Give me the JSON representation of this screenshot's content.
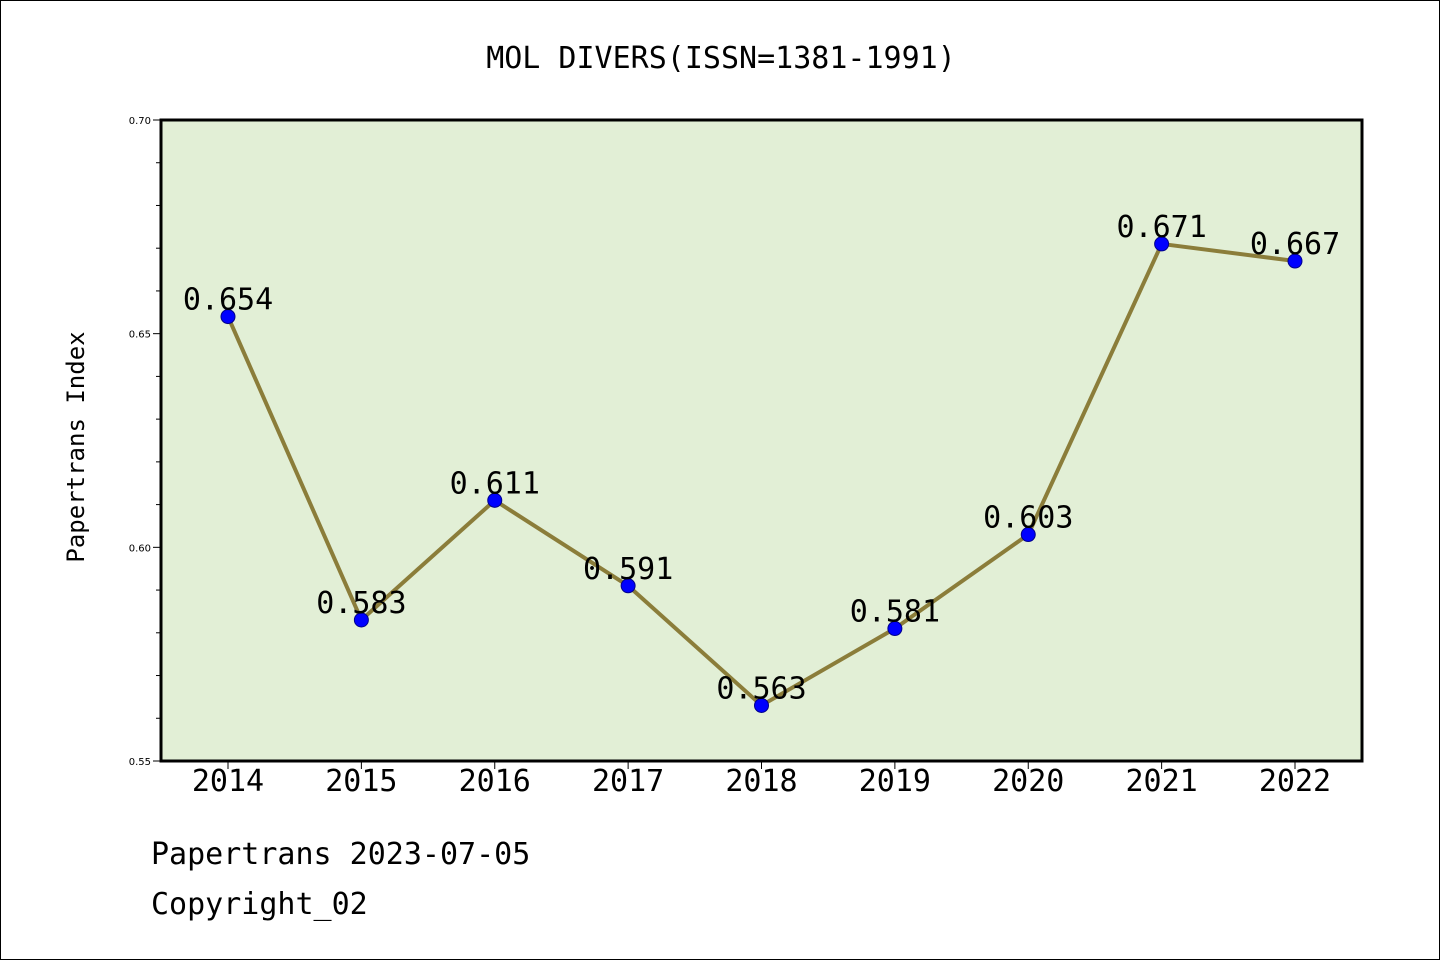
{
  "chart_data": {
    "type": "line",
    "title": "MOL DIVERS(ISSN=1381-1991)",
    "ylabel": "Papertrans Index",
    "xlabel": "",
    "categories": [
      "2014",
      "2015",
      "2016",
      "2017",
      "2018",
      "2019",
      "2020",
      "2021",
      "2022"
    ],
    "values": [
      0.654,
      0.583,
      0.611,
      0.591,
      0.563,
      0.581,
      0.603,
      0.671,
      0.667
    ],
    "value_labels": [
      "0.654",
      "0.583",
      "0.611",
      "0.591",
      "0.563",
      "0.581",
      "0.603",
      "0.671",
      "0.667"
    ],
    "ylim": [
      0.55,
      0.7
    ],
    "yticks": [
      "0.55",
      "0.60",
      "0.65",
      "0.70"
    ],
    "grid": false,
    "colors": {
      "plot_background": "#e2efd6",
      "line": "#8b7d3a",
      "marker": "#0000ff"
    }
  },
  "footer": {
    "line1": "Papertrans 2023-07-05",
    "line2": "Copyright_02"
  }
}
